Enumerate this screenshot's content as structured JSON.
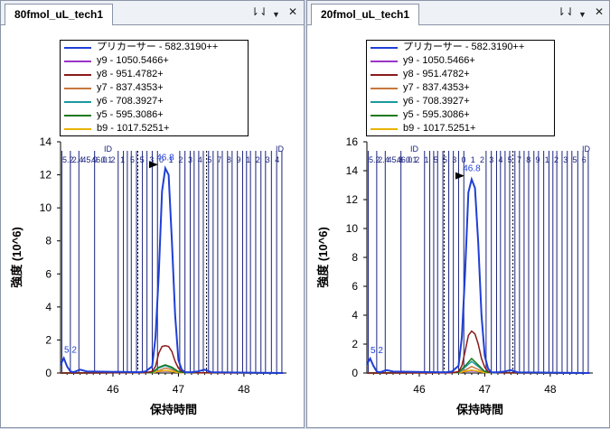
{
  "panes": [
    {
      "tab_title": "80fmol_uL_tech1",
      "controls": {
        "pin": "⇂⇃",
        "menu": "▼",
        "close": "✕"
      },
      "legend": [
        {
          "label": "プリカーサー - 582.3190++",
          "color": "#1f3fd6"
        },
        {
          "label": "y9 - 1050.5466+",
          "color": "#9b36c8"
        },
        {
          "label": "y8 - 951.4782+",
          "color": "#8b1a1a"
        },
        {
          "label": "y7 - 837.4353+",
          "color": "#c8783c"
        },
        {
          "label": "y6 - 708.3927+",
          "color": "#1a9aa0"
        },
        {
          "label": "y5 - 595.3086+",
          "color": "#1e7a1e"
        },
        {
          "label": "b9 - 1017.5251+",
          "color": "#e8b400"
        }
      ],
      "peak_label": "46.8",
      "small_peak_label": "5.2",
      "id_labels": [
        "ID",
        "ID"
      ],
      "rt_labels": [
        "5.2",
        "2.4",
        "45.9",
        "46.0",
        "0.1",
        "2",
        "1",
        "5",
        "5",
        "3",
        "0",
        "1",
        "2",
        "3",
        "4",
        "5",
        "7",
        "8",
        "9",
        "1",
        "2",
        "3",
        "4"
      ],
      "chart_data": {
        "type": "line",
        "title": "",
        "xlabel": "保持時間",
        "ylabel": "強度 (10^6)",
        "xlim": [
          45.2,
          48.65
        ],
        "ylim": [
          0,
          14
        ],
        "xticks": [
          46,
          47,
          48
        ],
        "yticks": [
          0,
          2,
          4,
          6,
          8,
          10,
          12,
          14
        ],
        "series": [
          {
            "name": "プリカーサー - 582.3190++",
            "x": [
              45.2,
              45.25,
              45.3,
              45.35,
              45.4,
              45.5,
              45.6,
              46.4,
              46.5,
              46.6,
              46.65,
              46.7,
              46.75,
              46.8,
              46.85,
              46.9,
              46.95,
              47.0,
              47.05,
              47.1,
              47.2,
              47.3,
              47.4,
              47.5,
              48.6
            ],
            "values": [
              0.5,
              0.9,
              0.4,
              0.1,
              0.05,
              0.2,
              0.1,
              0.05,
              0.1,
              0.4,
              2.2,
              6.0,
              11.0,
              12.4,
              12.0,
              8.0,
              3.5,
              0.8,
              0.2,
              0.05,
              0.05,
              0.1,
              0.2,
              0.05,
              0.0
            ]
          },
          {
            "name": "y9 - 1050.5466+",
            "x": [
              45.2,
              46.6,
              46.7,
              46.8,
              46.9,
              47.0,
              47.1,
              48.6
            ],
            "values": [
              0,
              0.02,
              0.08,
              0.12,
              0.08,
              0.03,
              0.01,
              0
            ]
          },
          {
            "name": "y8 - 951.4782+",
            "x": [
              45.2,
              46.5,
              46.6,
              46.65,
              46.7,
              46.75,
              46.8,
              46.85,
              46.9,
              46.95,
              47.0,
              47.05,
              47.1,
              47.2,
              48.6
            ],
            "values": [
              0,
              0.02,
              0.1,
              0.4,
              1.2,
              1.6,
              1.65,
              1.6,
              1.3,
              0.7,
              0.3,
              0.1,
              0.05,
              0.02,
              0
            ]
          },
          {
            "name": "y7 - 837.4353+",
            "x": [
              45.2,
              46.6,
              46.7,
              46.8,
              46.9,
              47.0,
              47.1,
              48.6
            ],
            "values": [
              0,
              0.02,
              0.15,
              0.3,
              0.2,
              0.05,
              0.01,
              0
            ]
          },
          {
            "name": "y6 - 708.3927+",
            "x": [
              45.2,
              46.6,
              46.7,
              46.8,
              46.9,
              47.0,
              47.1,
              48.6
            ],
            "values": [
              0,
              0.03,
              0.3,
              0.45,
              0.3,
              0.08,
              0.02,
              0
            ]
          },
          {
            "name": "y5 - 595.3086+",
            "x": [
              45.2,
              46.6,
              46.7,
              46.8,
              46.9,
              47.0,
              47.1,
              48.6
            ],
            "values": [
              0,
              0.03,
              0.35,
              0.5,
              0.35,
              0.08,
              0.02,
              0
            ]
          },
          {
            "name": "b9 - 1017.5251+",
            "x": [
              45.2,
              46.6,
              46.7,
              46.8,
              46.9,
              47.0,
              47.1,
              48.6
            ],
            "values": [
              0,
              0.02,
              0.1,
              0.15,
              0.1,
              0.03,
              0.01,
              0
            ]
          }
        ],
        "vlines": [
          45.22,
          45.35,
          45.48,
          45.72,
          46.08,
          46.16,
          46.22,
          46.28,
          46.36,
          46.45,
          46.52,
          46.6,
          46.68,
          47.02,
          47.1,
          47.18,
          47.24,
          47.31,
          47.38,
          47.46,
          47.53,
          47.6,
          47.67,
          47.75,
          47.82,
          47.9,
          47.98,
          48.04,
          48.1,
          48.18,
          48.26,
          48.33,
          48.42,
          48.5,
          48.58
        ],
        "dashed_vlines": [
          46.38,
          47.43
        ],
        "peak_rt": 46.8
      }
    },
    {
      "tab_title": "20fmol_uL_tech1",
      "controls": {
        "pin": "⇂⇃",
        "menu": "▼",
        "close": "✕"
      },
      "legend": [
        {
          "label": "プリカーサー - 582.3190++",
          "color": "#1f3fd6"
        },
        {
          "label": "y9 - 1050.5466+",
          "color": "#9b36c8"
        },
        {
          "label": "y8 - 951.4782+",
          "color": "#8b1a1a"
        },
        {
          "label": "y7 - 837.4353+",
          "color": "#c8783c"
        },
        {
          "label": "y6 - 708.3927+",
          "color": "#1a9aa0"
        },
        {
          "label": "y5 - 595.3086+",
          "color": "#1e7a1e"
        },
        {
          "label": "b9 - 1017.5251+",
          "color": "#e8b400"
        }
      ],
      "peak_label": "46.8",
      "small_peak_label": "5.2",
      "id_labels": [
        "ID",
        "ID"
      ],
      "rt_labels": [
        "5.2",
        "2.4",
        "45.8",
        "46.0",
        "0.1",
        "2",
        "1",
        "5",
        "5",
        "3",
        "0",
        "1",
        "2",
        "3",
        "4",
        "5",
        "7",
        "8",
        "9",
        "1",
        "2",
        "3",
        "5",
        "6"
      ],
      "chart_data": {
        "type": "line",
        "title": "",
        "xlabel": "保持時間",
        "ylabel": "強度 (10^6)",
        "xlim": [
          45.2,
          48.65
        ],
        "ylim": [
          0,
          16
        ],
        "xticks": [
          46,
          47,
          48
        ],
        "yticks": [
          0,
          2,
          4,
          6,
          8,
          10,
          12,
          14,
          16
        ],
        "series": [
          {
            "name": "プリカーサー - 582.3190++",
            "x": [
              45.2,
              45.25,
              45.3,
              45.35,
              45.4,
              45.5,
              45.6,
              46.4,
              46.5,
              46.6,
              46.65,
              46.7,
              46.75,
              46.8,
              46.85,
              46.9,
              46.95,
              47.0,
              47.05,
              47.1,
              47.2,
              47.3,
              47.4,
              47.5,
              48.6
            ],
            "values": [
              0.6,
              1.0,
              0.5,
              0.1,
              0.05,
              0.2,
              0.1,
              0.05,
              0.1,
              0.5,
              2.5,
              7.0,
              12.5,
              13.4,
              12.8,
              9.0,
              4.0,
              1.2,
              0.3,
              0.05,
              0.05,
              0.1,
              0.2,
              0.05,
              0.0
            ]
          },
          {
            "name": "y9 - 1050.5466+",
            "x": [
              45.2,
              46.6,
              46.7,
              46.8,
              46.9,
              47.0,
              47.1,
              48.6
            ],
            "values": [
              0,
              0.02,
              0.1,
              0.15,
              0.1,
              0.03,
              0.01,
              0
            ]
          },
          {
            "name": "y8 - 951.4782+",
            "x": [
              45.2,
              46.5,
              46.6,
              46.65,
              46.7,
              46.75,
              46.8,
              46.85,
              46.9,
              46.95,
              47.0,
              47.05,
              47.1,
              47.2,
              48.6
            ],
            "values": [
              0,
              0.02,
              0.1,
              0.5,
              1.5,
              2.6,
              2.9,
              2.7,
              2.0,
              1.0,
              0.4,
              0.1,
              0.05,
              0.02,
              0
            ]
          },
          {
            "name": "y7 - 837.4353+",
            "x": [
              45.2,
              46.6,
              46.7,
              46.8,
              46.9,
              47.0,
              47.1,
              48.6
            ],
            "values": [
              0,
              0.02,
              0.2,
              0.45,
              0.25,
              0.06,
              0.01,
              0
            ]
          },
          {
            "name": "y6 - 708.3927+",
            "x": [
              45.2,
              46.6,
              46.7,
              46.8,
              46.9,
              47.0,
              47.1,
              48.6
            ],
            "values": [
              0,
              0.03,
              0.4,
              0.8,
              0.45,
              0.1,
              0.02,
              0
            ]
          },
          {
            "name": "y5 - 595.3086+",
            "x": [
              45.2,
              46.6,
              46.7,
              46.8,
              46.9,
              47.0,
              47.1,
              48.6
            ],
            "values": [
              0,
              0.04,
              0.5,
              1.0,
              0.55,
              0.1,
              0.02,
              0
            ]
          },
          {
            "name": "b9 - 1017.5251+",
            "x": [
              45.2,
              46.6,
              46.7,
              46.8,
              46.9,
              47.0,
              47.1,
              48.6
            ],
            "values": [
              0,
              0.02,
              0.12,
              0.2,
              0.12,
              0.03,
              0.01,
              0
            ]
          }
        ],
        "vlines": [
          45.22,
          45.35,
          45.48,
          45.72,
          46.08,
          46.16,
          46.22,
          46.28,
          46.36,
          46.45,
          46.52,
          46.6,
          46.68,
          47.02,
          47.1,
          47.18,
          47.24,
          47.31,
          47.38,
          47.46,
          47.53,
          47.6,
          47.67,
          47.75,
          47.82,
          47.9,
          47.98,
          48.04,
          48.1,
          48.18,
          48.26,
          48.33,
          48.42,
          48.5,
          48.58
        ],
        "dashed_vlines": [
          46.38,
          47.43
        ],
        "peak_rt": 46.8
      }
    }
  ]
}
